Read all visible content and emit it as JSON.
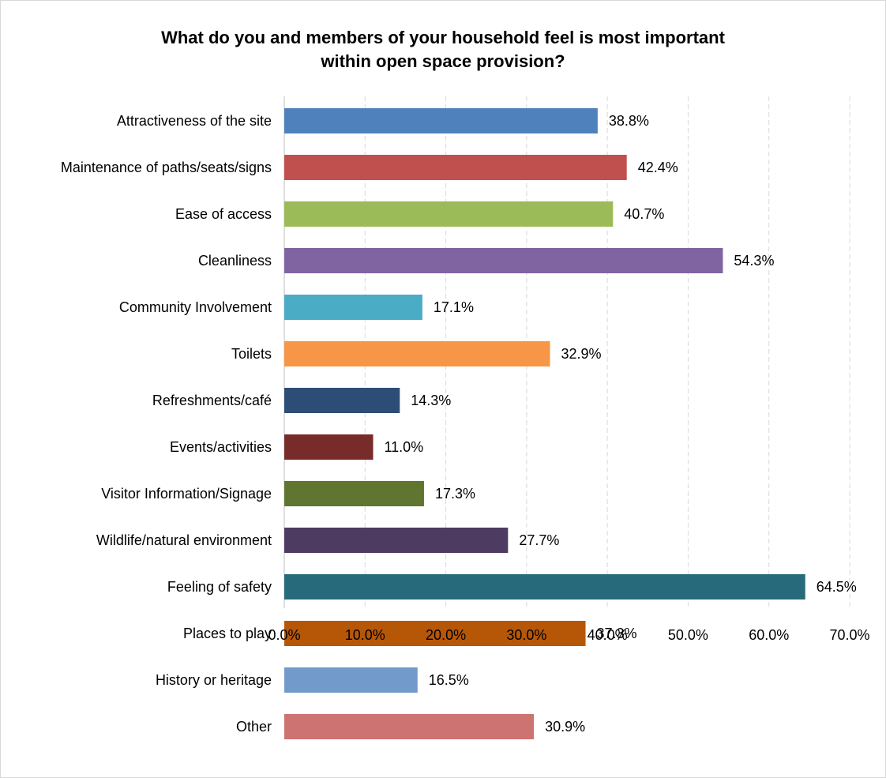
{
  "chart_data": {
    "type": "bar",
    "orientation": "horizontal",
    "title": "What do you and members of your household feel is most important\nwithin open space provision?",
    "xlabel": "",
    "ylabel": "",
    "xlim": [
      0,
      70
    ],
    "grid": true,
    "legend": "none",
    "value_format": "percent-1dp",
    "x_ticks": [
      "0.0%",
      "10.0%",
      "20.0%",
      "30.0%",
      "40.0%",
      "50.0%",
      "60.0%",
      "70.0%"
    ],
    "categories": [
      "Attractiveness of the site",
      "Maintenance of paths/seats/signs",
      "Ease of access",
      "Cleanliness",
      "Community Involvement",
      "Toilets",
      "Refreshments/café",
      "Events/activities",
      "Visitor Information/Signage",
      "Wildlife/natural environment",
      "Feeling of safety",
      "Places to play",
      "History or heritage",
      "Other"
    ],
    "values": [
      38.8,
      42.4,
      40.7,
      54.3,
      17.1,
      32.9,
      14.3,
      11.0,
      17.3,
      27.7,
      64.5,
      37.3,
      16.5,
      30.9
    ],
    "value_labels": [
      "38.8%",
      "42.4%",
      "40.7%",
      "54.3%",
      "17.1%",
      "32.9%",
      "14.3%",
      "11.0%",
      "17.3%",
      "27.7%",
      "64.5%",
      "37.3%",
      "16.5%",
      "30.9%"
    ],
    "colors": [
      "#4f81bd",
      "#c0504d",
      "#9bbb59",
      "#8064a2",
      "#4bacc6",
      "#f79646",
      "#2c4d75",
      "#772c2a",
      "#5f7530",
      "#4d3b62",
      "#276a7c",
      "#b65708",
      "#729aca",
      "#cd7371"
    ]
  }
}
